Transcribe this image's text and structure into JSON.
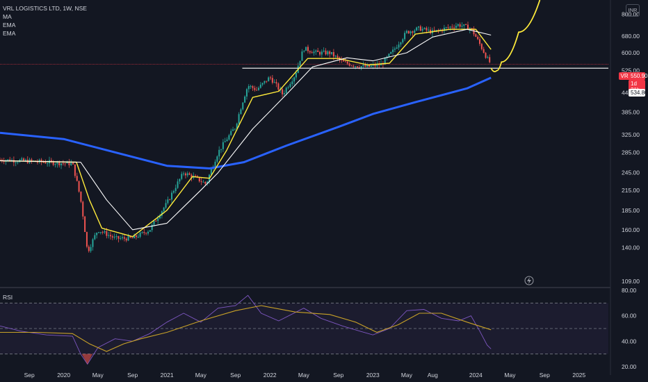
{
  "header": {
    "title": "VRL LOGISTICS LTD, 1W, NSE",
    "indicators": [
      "MA",
      "EMA",
      "EMA"
    ],
    "currency": "INR"
  },
  "price_badges": {
    "ticker": "VRLLOG",
    "last_price": "550.90",
    "countdown": "1d 21h",
    "level": "534.80"
  },
  "rsi": {
    "label": "RSI"
  },
  "colors": {
    "background": "#131722",
    "up": "#26a69a",
    "down": "#ef5350",
    "ema_fast": "#ffeb3b",
    "ema_slow": "#ffffff",
    "ma_long": "#2962ff",
    "rsi_line": "#7e57c2",
    "rsi_ma": "#c9a227"
  },
  "chart_data": [
    {
      "type": "candlestick",
      "title": "VRL LOGISTICS LTD, 1W, NSE",
      "scale": "log",
      "y_ticks": [
        800,
        680,
        600,
        525,
        445,
        385,
        325,
        285,
        245,
        215,
        185,
        160,
        140,
        109
      ],
      "y_tick_labels": [
        "800.00",
        "680.00",
        "600.00",
        "525.00",
        "445.00",
        "385.00",
        "325.00",
        "285.00",
        "245.00",
        "215.00",
        "185.00",
        "160.00",
        "140.00",
        "109.00"
      ],
      "x_tick_labels": [
        "Sep",
        "2020",
        "May",
        "Sep",
        "2021",
        "May",
        "Sep",
        "2022",
        "May",
        "Sep",
        "2023",
        "May",
        "Aug",
        "2024",
        "May",
        "Sep",
        "2025"
      ],
      "x_ticks": [
        "2019-09-01",
        "2020-01-01",
        "2020-05-01",
        "2020-09-01",
        "2021-01-01",
        "2021-05-01",
        "2021-09-01",
        "2022-01-01",
        "2022-05-01",
        "2022-09-01",
        "2023-01-01",
        "2023-05-01",
        "2023-08-01",
        "2024-01-01",
        "2024-05-01",
        "2024-09-01",
        "2025-01-01"
      ],
      "x_range": [
        "2019-05-20",
        "2025-04-15"
      ],
      "ylim": [
        105,
        890
      ],
      "price_path": [
        [
          "2019-05-20",
          270
        ],
        [
          "2019-08-01",
          268
        ],
        [
          "2019-11-01",
          265
        ],
        [
          "2020-02-01",
          262
        ],
        [
          "2020-03-01",
          200
        ],
        [
          "2020-03-25",
          135
        ],
        [
          "2020-05-01",
          160
        ],
        [
          "2020-07-01",
          150
        ],
        [
          "2020-09-01",
          150
        ],
        [
          "2020-11-01",
          160
        ],
        [
          "2021-01-01",
          195
        ],
        [
          "2021-03-01",
          245
        ],
        [
          "2021-04-15",
          235
        ],
        [
          "2021-05-20",
          225
        ],
        [
          "2021-07-01",
          285
        ],
        [
          "2021-09-01",
          345
        ],
        [
          "2021-10-15",
          470
        ],
        [
          "2021-11-15",
          455
        ],
        [
          "2022-01-01",
          500
        ],
        [
          "2022-02-15",
          440
        ],
        [
          "2022-04-01",
          510
        ],
        [
          "2022-05-01",
          620
        ],
        [
          "2022-06-15",
          600
        ],
        [
          "2022-08-01",
          600
        ],
        [
          "2022-09-15",
          560
        ],
        [
          "2022-11-01",
          545
        ],
        [
          "2022-12-15",
          540
        ],
        [
          "2023-02-01",
          550
        ],
        [
          "2023-03-15",
          610
        ],
        [
          "2023-05-01",
          700
        ],
        [
          "2023-06-15",
          720
        ],
        [
          "2023-08-01",
          700
        ],
        [
          "2023-09-15",
          720
        ],
        [
          "2023-11-01",
          740
        ],
        [
          "2023-12-15",
          720
        ],
        [
          "2024-01-15",
          640
        ],
        [
          "2024-02-10",
          575
        ],
        [
          "2024-02-24",
          551
        ]
      ],
      "series": [
        {
          "name": "MA",
          "color": "#2962ff",
          "points": [
            [
              "2019-05-20",
              330
            ],
            [
              "2020-01-01",
              315
            ],
            [
              "2020-06-01",
              290
            ],
            [
              "2021-01-01",
              258
            ],
            [
              "2021-06-01",
              253
            ],
            [
              "2021-10-01",
              265
            ],
            [
              "2022-03-01",
              300
            ],
            [
              "2022-09-01",
              345
            ],
            [
              "2023-01-01",
              380
            ],
            [
              "2023-06-01",
              415
            ],
            [
              "2023-12-01",
              460
            ],
            [
              "2024-02-24",
              498
            ]
          ]
        },
        {
          "name": "EMA",
          "color": "#ffeb3b",
          "points": [
            [
              "2019-05-20",
              268
            ],
            [
              "2020-02-15",
              265
            ],
            [
              "2020-04-01",
              200
            ],
            [
              "2020-05-15",
              162
            ],
            [
              "2020-09-01",
              152
            ],
            [
              "2021-01-01",
              185
            ],
            [
              "2021-04-01",
              238
            ],
            [
              "2021-06-01",
              235
            ],
            [
              "2021-08-01",
              290
            ],
            [
              "2021-11-01",
              430
            ],
            [
              "2022-02-01",
              450
            ],
            [
              "2022-05-15",
              575
            ],
            [
              "2022-09-01",
              575
            ],
            [
              "2022-12-15",
              548
            ],
            [
              "2023-03-01",
              555
            ],
            [
              "2023-06-01",
              690
            ],
            [
              "2023-10-01",
              715
            ],
            [
              "2024-01-01",
              715
            ],
            [
              "2024-02-24",
              615
            ]
          ]
        },
        {
          "name": "EMA",
          "color": "#ffffff",
          "points": [
            [
              "2019-05-20",
              268
            ],
            [
              "2020-03-01",
              265
            ],
            [
              "2020-06-01",
              200
            ],
            [
              "2020-09-01",
              160
            ],
            [
              "2021-01-01",
              168
            ],
            [
              "2021-05-01",
              215
            ],
            [
              "2021-07-01",
              245
            ],
            [
              "2021-11-01",
              340
            ],
            [
              "2022-03-01",
              440
            ],
            [
              "2022-06-01",
              540
            ],
            [
              "2022-10-01",
              578
            ],
            [
              "2023-01-01",
              565
            ],
            [
              "2023-05-01",
              600
            ],
            [
              "2023-08-01",
              675
            ],
            [
              "2023-12-01",
              715
            ],
            [
              "2024-02-24",
              685
            ]
          ]
        }
      ],
      "projection": [
        [
          "2024-02-24",
          535
        ],
        [
          "2024-03-15",
          525
        ],
        [
          "2024-04-01",
          560
        ],
        [
          "2024-06-01",
          700
        ],
        [
          "2024-08-15",
          890
        ]
      ],
      "horizontal_level": {
        "value": 534.8,
        "from": "2021-09-25"
      },
      "last_price_line": 550.9
    },
    {
      "type": "line",
      "title": "RSI",
      "ylim": [
        20,
        80
      ],
      "y_ticks": [
        80,
        60,
        40,
        20
      ],
      "y_tick_labels": [
        "80.00",
        "60.00",
        "40.00",
        "20.00"
      ],
      "bands": {
        "upper": 70,
        "middle": 50,
        "lower": 30
      },
      "series": [
        {
          "name": "RSI",
          "color": "#7e57c2",
          "points": [
            [
              "2019-05-20",
              52
            ],
            [
              "2019-08-01",
              48
            ],
            [
              "2019-11-01",
              45
            ],
            [
              "2020-02-01",
              44
            ],
            [
              "2020-03-01",
              30
            ],
            [
              "2020-03-25",
              22
            ],
            [
              "2020-05-01",
              35
            ],
            [
              "2020-07-01",
              42
            ],
            [
              "2020-09-01",
              40
            ],
            [
              "2020-11-01",
              46
            ],
            [
              "2021-01-01",
              55
            ],
            [
              "2021-03-01",
              62
            ],
            [
              "2021-05-01",
              55
            ],
            [
              "2021-07-01",
              66
            ],
            [
              "2021-09-01",
              68
            ],
            [
              "2021-10-15",
              76
            ],
            [
              "2021-12-01",
              62
            ],
            [
              "2022-02-01",
              56
            ],
            [
              "2022-05-01",
              66
            ],
            [
              "2022-07-01",
              58
            ],
            [
              "2022-09-15",
              52
            ],
            [
              "2022-11-15",
              48
            ],
            [
              "2023-01-01",
              45
            ],
            [
              "2023-03-01",
              50
            ],
            [
              "2023-05-01",
              64
            ],
            [
              "2023-07-01",
              65
            ],
            [
              "2023-09-01",
              58
            ],
            [
              "2023-11-01",
              56
            ],
            [
              "2023-12-15",
              60
            ],
            [
              "2024-01-15",
              48
            ],
            [
              "2024-02-10",
              37
            ],
            [
              "2024-02-24",
              34
            ]
          ]
        },
        {
          "name": "RSI MA",
          "color": "#c9a227",
          "points": [
            [
              "2019-05-20",
              47
            ],
            [
              "2019-10-01",
              47
            ],
            [
              "2020-02-01",
              46
            ],
            [
              "2020-04-01",
              38
            ],
            [
              "2020-06-01",
              32
            ],
            [
              "2020-08-01",
              38
            ],
            [
              "2020-10-01",
              42
            ],
            [
              "2021-01-01",
              47
            ],
            [
              "2021-05-01",
              56
            ],
            [
              "2021-09-01",
              64
            ],
            [
              "2021-12-01",
              68
            ],
            [
              "2022-04-01",
              63
            ],
            [
              "2022-08-01",
              61
            ],
            [
              "2022-11-01",
              55
            ],
            [
              "2023-01-15",
              47
            ],
            [
              "2023-04-01",
              53
            ],
            [
              "2023-06-15",
              62
            ],
            [
              "2023-09-01",
              62
            ],
            [
              "2023-12-01",
              55
            ],
            [
              "2024-02-24",
              49
            ]
          ]
        }
      ]
    }
  ]
}
